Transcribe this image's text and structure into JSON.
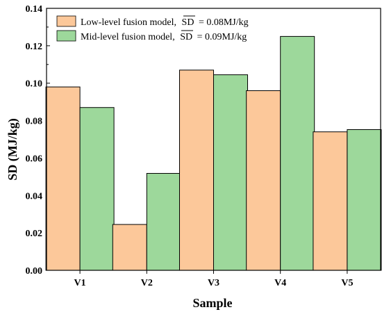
{
  "chart_data": {
    "type": "bar",
    "categories": [
      "V1",
      "V2",
      "V3",
      "V4",
      "V5"
    ],
    "series": [
      {
        "name": "Low-level fusion model,",
        "sd_label": "SD",
        "sd_value": "= 0.08MJ/kg",
        "color": "#fcc89a",
        "values": [
          0.098,
          0.0245,
          0.107,
          0.096,
          0.074
        ]
      },
      {
        "name": "Mid-level fusion model,",
        "sd_label": "SD",
        "sd_value": "= 0.09MJ/kg",
        "color": "#9dd89b",
        "values": [
          0.087,
          0.0518,
          0.1045,
          0.125,
          0.0752
        ]
      }
    ],
    "xlabel": "Sample",
    "ylabel": "SD (MJ/kg)",
    "ylim": [
      0,
      0.14
    ],
    "yticks": [
      "0.00",
      "0.02",
      "0.04",
      "0.06",
      "0.08",
      "0.10",
      "0.12",
      "0.14"
    ],
    "grid": false,
    "legend_position": "top-left"
  }
}
